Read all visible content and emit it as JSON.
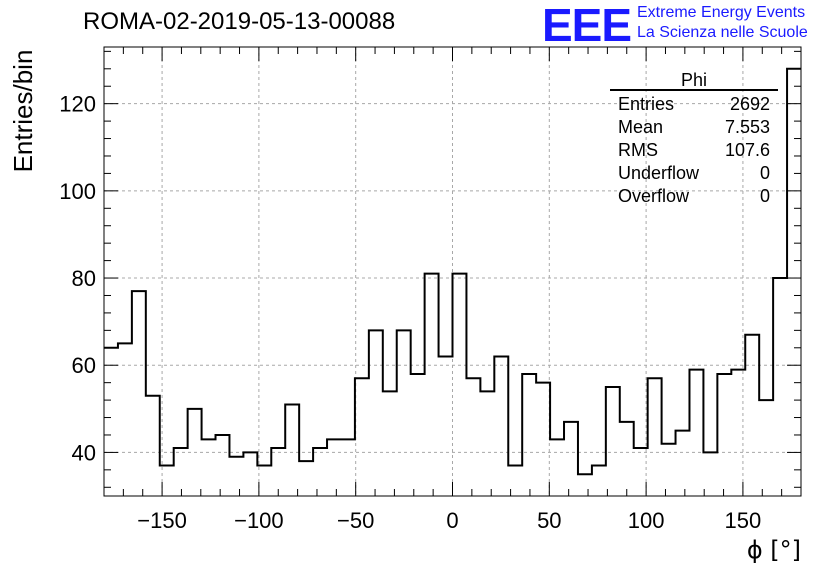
{
  "header": {
    "run_title": "ROMA-02-2019-05-13-00088",
    "logo_text": "EEE",
    "logo_line1": "Extreme Energy Events",
    "logo_line2": "La Scienza nelle Scuole",
    "logo_color": "#1a1aff"
  },
  "stats_box": {
    "title": "Phi",
    "rows": [
      {
        "label": "Entries",
        "value": "2692"
      },
      {
        "label": "Mean",
        "value": "7.553"
      },
      {
        "label": "RMS",
        "value": "107.6"
      },
      {
        "label": "Underflow",
        "value": "0"
      },
      {
        "label": "Overflow",
        "value": "0"
      }
    ]
  },
  "chart_data": {
    "type": "histogram",
    "title": "ROMA-02-2019-05-13-00088",
    "xlabel": "ϕ [°]",
    "ylabel": "Entries/bin",
    "xlim": [
      -180,
      180
    ],
    "ylim": [
      30,
      133
    ],
    "x_ticks": [
      -150,
      -100,
      -50,
      0,
      50,
      100,
      150
    ],
    "x_tick_labels": [
      "−150",
      "−100",
      "−50",
      "0",
      "50",
      "100",
      "150"
    ],
    "y_ticks": [
      40,
      60,
      80,
      100,
      120
    ],
    "y_tick_labels": [
      "40",
      "60",
      "80",
      "100",
      "120"
    ],
    "grid": true,
    "bin_width": 7.2,
    "bin_edges_start": -180,
    "values": [
      64,
      65,
      77,
      53,
      37,
      41,
      50,
      43,
      44,
      39,
      40,
      37,
      41,
      51,
      38,
      41,
      43,
      43,
      57,
      68,
      54,
      68,
      58,
      81,
      62,
      81,
      57,
      54,
      62,
      37,
      58,
      56,
      43,
      47,
      35,
      37,
      55,
      47,
      41,
      57,
      42,
      45,
      59,
      40,
      58,
      59,
      67,
      52,
      80,
      128
    ]
  }
}
